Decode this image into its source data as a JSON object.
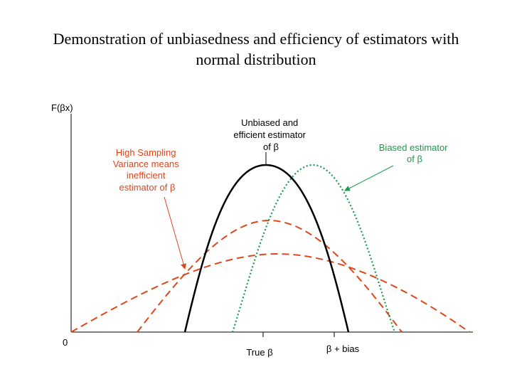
{
  "title": {
    "line1": "Demonstration of unbiasedness and efficiency of estimators with",
    "line2": "normal distribution"
  },
  "axis": {
    "y_label": "F(βx)",
    "origin_label": "0",
    "tick_true": "True β",
    "tick_bias": "β + bias"
  },
  "annotations": {
    "unbiased": [
      "Unbiased and",
      "efficient estimator",
      "of β"
    ],
    "biased": [
      "Biased estimator",
      "of β"
    ],
    "high_variance": [
      "High Sampling",
      "Variance means",
      "inefficient",
      "estimator of β"
    ]
  },
  "colors": {
    "unbiased_curve": "#000000",
    "biased_curve": "#1a9a4a",
    "inefficient_curves": "#e0461c",
    "biased_label": "#1a9a4a",
    "high_variance_label": "#e0461c",
    "axis": "#000000"
  }
}
